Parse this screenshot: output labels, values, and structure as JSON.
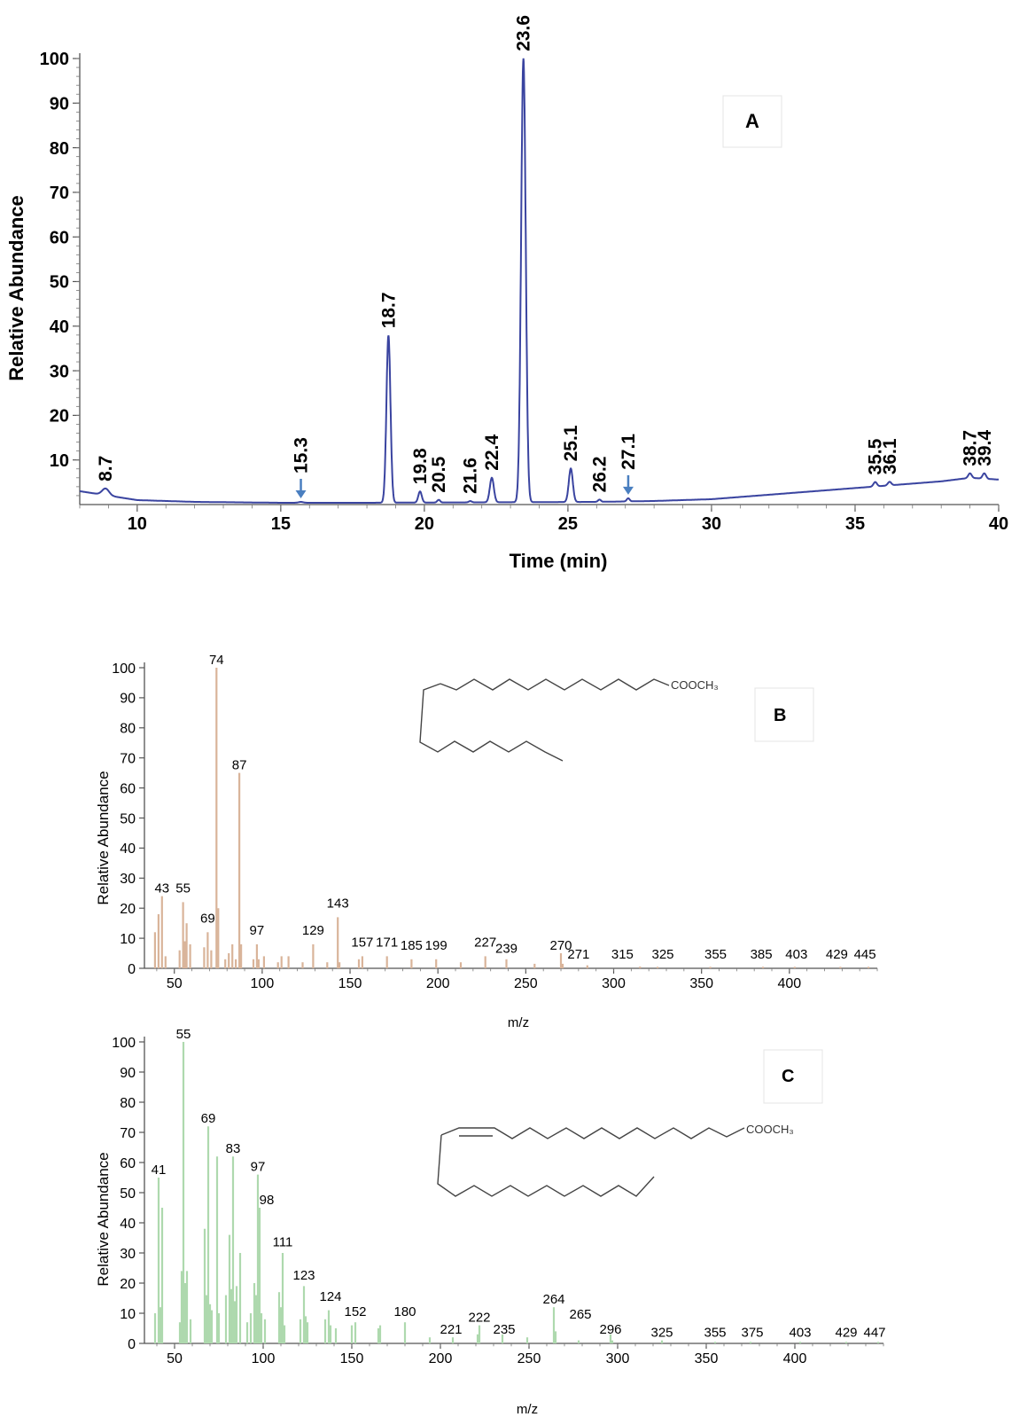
{
  "chart_data": [
    {
      "id": "A",
      "type": "line",
      "panel_label": "A",
      "xlabel": "Time (min)",
      "ylabel": "Relative Abundance",
      "xlim": [
        8,
        40
      ],
      "ylim": [
        0,
        100
      ],
      "xticks": [
        10,
        15,
        20,
        25,
        30,
        35,
        40
      ],
      "yticks": [
        10,
        20,
        30,
        40,
        50,
        60,
        70,
        80,
        90,
        100
      ],
      "color": "#3a44a0",
      "arrow_color": "#4a7fc0",
      "baseline": [
        [
          8,
          3
        ],
        [
          9,
          2
        ],
        [
          10,
          1
        ],
        [
          12,
          0.6
        ],
        [
          15,
          0.4
        ],
        [
          18,
          0.4
        ],
        [
          22,
          0.5
        ],
        [
          26,
          0.6
        ],
        [
          28,
          0.8
        ],
        [
          30,
          1.2
        ],
        [
          32,
          2.2
        ],
        [
          34,
          3.2
        ],
        [
          36,
          4.2
        ],
        [
          38,
          5.2
        ],
        [
          39,
          6
        ],
        [
          40,
          5.6
        ]
      ],
      "peaks": [
        {
          "label": "8.7",
          "t": 8.9,
          "h": 1.5,
          "w": 0.12,
          "arrow": false
        },
        {
          "label": "15.3",
          "t": 15.7,
          "h": 0.2,
          "w": 0.08,
          "arrow": true
        },
        {
          "label": "18.7",
          "t": 18.75,
          "h": 37.5,
          "w": 0.07,
          "arrow": false
        },
        {
          "label": "19.8",
          "t": 19.85,
          "h": 2.5,
          "w": 0.06,
          "arrow": false
        },
        {
          "label": "20.5",
          "t": 20.5,
          "h": 0.6,
          "w": 0.05,
          "arrow": false
        },
        {
          "label": "21.6",
          "t": 21.6,
          "h": 0.3,
          "w": 0.05,
          "arrow": false
        },
        {
          "label": "22.4",
          "t": 22.35,
          "h": 5.5,
          "w": 0.07,
          "arrow": false
        },
        {
          "label": "23.6",
          "t": 23.45,
          "h": 99.5,
          "w": 0.08,
          "arrow": false
        },
        {
          "label": "25.1",
          "t": 25.1,
          "h": 7.5,
          "w": 0.07,
          "arrow": false
        },
        {
          "label": "26.2",
          "t": 26.1,
          "h": 0.5,
          "w": 0.05,
          "arrow": false
        },
        {
          "label": "27.1",
          "t": 27.1,
          "h": 0.7,
          "w": 0.05,
          "arrow": true
        },
        {
          "label": "35.5",
          "t": 35.7,
          "h": 1.0,
          "w": 0.06,
          "arrow": false
        },
        {
          "label": "36.1",
          "t": 36.2,
          "h": 0.8,
          "w": 0.06,
          "arrow": false
        },
        {
          "label": "38.7",
          "t": 39.0,
          "h": 1.0,
          "w": 0.06,
          "arrow": false
        },
        {
          "label": "39.4",
          "t": 39.5,
          "h": 1.2,
          "w": 0.06,
          "arrow": false
        }
      ]
    },
    {
      "id": "B",
      "type": "bar",
      "panel_label": "B",
      "xlabel": "m/z",
      "ylabel": "Relative Abundance",
      "xlim": [
        33,
        450
      ],
      "ylim": [
        0,
        100
      ],
      "xticks": [
        50,
        100,
        150,
        200,
        250,
        300,
        350,
        400
      ],
      "yticks": [
        0,
        10,
        20,
        30,
        40,
        50,
        60,
        70,
        80,
        90,
        100
      ],
      "color": "#d9b49a",
      "formula": "COOCH₃",
      "bars": [
        [
          39,
          12
        ],
        [
          41,
          18
        ],
        [
          43,
          24
        ],
        [
          45,
          4
        ],
        [
          53,
          6
        ],
        [
          55,
          22
        ],
        [
          56,
          9
        ],
        [
          57,
          15
        ],
        [
          59,
          8
        ],
        [
          67,
          7
        ],
        [
          69,
          12
        ],
        [
          71,
          6
        ],
        [
          74,
          100
        ],
        [
          75,
          20
        ],
        [
          79,
          3
        ],
        [
          81,
          5
        ],
        [
          83,
          8
        ],
        [
          85,
          3
        ],
        [
          87,
          65
        ],
        [
          88,
          8
        ],
        [
          95,
          3
        ],
        [
          97,
          8
        ],
        [
          98,
          3
        ],
        [
          101,
          4
        ],
        [
          109,
          2
        ],
        [
          111,
          4
        ],
        [
          115,
          4
        ],
        [
          123,
          2
        ],
        [
          129,
          8
        ],
        [
          137,
          2
        ],
        [
          143,
          17
        ],
        [
          144,
          2
        ],
        [
          155,
          3
        ],
        [
          157,
          4
        ],
        [
          171,
          4
        ],
        [
          185,
          3
        ],
        [
          199,
          3
        ],
        [
          213,
          2
        ],
        [
          227,
          4
        ],
        [
          239,
          3
        ],
        [
          255,
          1.5
        ],
        [
          270,
          5
        ],
        [
          271,
          1.5
        ],
        [
          285,
          1
        ],
        [
          315,
          0.6
        ],
        [
          325,
          0.5
        ],
        [
          355,
          0.5
        ],
        [
          385,
          0.5
        ],
        [
          403,
          0.5
        ],
        [
          429,
          0.5
        ],
        [
          445,
          0.5
        ]
      ],
      "labels": [
        {
          "text": "74",
          "x": 74,
          "y": 100
        },
        {
          "text": "87",
          "x": 87,
          "y": 65
        },
        {
          "text": "43",
          "x": 43,
          "y": 24
        },
        {
          "text": "55",
          "x": 55,
          "y": 24
        },
        {
          "text": "69",
          "x": 69,
          "y": 14
        },
        {
          "text": "97",
          "x": 97,
          "y": 10
        },
        {
          "text": "143",
          "x": 143,
          "y": 19
        },
        {
          "text": "129",
          "x": 129,
          "y": 10
        },
        {
          "text": "157",
          "x": 157,
          "y": 6
        },
        {
          "text": "171",
          "x": 171,
          "y": 6
        },
        {
          "text": "185",
          "x": 185,
          "y": 5
        },
        {
          "text": "199",
          "x": 199,
          "y": 5
        },
        {
          "text": "227",
          "x": 227,
          "y": 6
        },
        {
          "text": "239",
          "x": 239,
          "y": 4
        },
        {
          "text": "270",
          "x": 270,
          "y": 5
        },
        {
          "text": "271",
          "x": 280,
          "y": 2
        },
        {
          "text": "315",
          "x": 305,
          "y": 2
        },
        {
          "text": "325",
          "x": 328,
          "y": 2
        },
        {
          "text": "355",
          "x": 358,
          "y": 2
        },
        {
          "text": "385",
          "x": 384,
          "y": 2
        },
        {
          "text": "403",
          "x": 404,
          "y": 2
        },
        {
          "text": "429",
          "x": 427,
          "y": 2
        },
        {
          "text": "445",
          "x": 443,
          "y": 2
        }
      ]
    },
    {
      "id": "C",
      "type": "bar",
      "panel_label": "C",
      "xlabel": "m/z",
      "ylabel": "Relative Abundance",
      "xlim": [
        33,
        450
      ],
      "ylim": [
        0,
        100
      ],
      "xticks": [
        50,
        100,
        150,
        200,
        250,
        300,
        350,
        400
      ],
      "yticks": [
        0,
        10,
        20,
        30,
        40,
        50,
        60,
        70,
        80,
        90,
        100
      ],
      "color": "#aed9ae",
      "formula": "COOCH₃",
      "bars": [
        [
          39,
          10
        ],
        [
          41,
          55
        ],
        [
          42,
          12
        ],
        [
          43,
          45
        ],
        [
          53,
          7
        ],
        [
          54,
          24
        ],
        [
          55,
          100
        ],
        [
          56,
          20
        ],
        [
          57,
          24
        ],
        [
          59,
          8
        ],
        [
          67,
          38
        ],
        [
          68,
          16
        ],
        [
          69,
          72
        ],
        [
          70,
          13
        ],
        [
          71,
          11
        ],
        [
          74,
          62
        ],
        [
          75,
          10
        ],
        [
          79,
          16
        ],
        [
          81,
          36
        ],
        [
          82,
          18
        ],
        [
          83,
          62
        ],
        [
          84,
          14
        ],
        [
          85,
          19
        ],
        [
          87,
          30
        ],
        [
          91,
          7
        ],
        [
          93,
          10
        ],
        [
          95,
          20
        ],
        [
          96,
          16
        ],
        [
          97,
          56
        ],
        [
          98,
          45
        ],
        [
          99,
          10
        ],
        [
          101,
          8
        ],
        [
          109,
          17
        ],
        [
          110,
          12
        ],
        [
          111,
          30
        ],
        [
          112,
          6
        ],
        [
          121,
          8
        ],
        [
          123,
          19
        ],
        [
          124,
          9
        ],
        [
          125,
          7
        ],
        [
          135,
          8
        ],
        [
          137,
          11
        ],
        [
          138,
          6
        ],
        [
          141,
          5
        ],
        [
          150,
          6
        ],
        [
          152,
          7
        ],
        [
          165,
          5
        ],
        [
          166,
          6
        ],
        [
          180,
          7
        ],
        [
          194,
          2
        ],
        [
          207,
          2
        ],
        [
          221,
          3
        ],
        [
          222,
          6
        ],
        [
          235,
          3
        ],
        [
          249,
          2
        ],
        [
          264,
          12
        ],
        [
          265,
          4
        ],
        [
          278,
          1
        ],
        [
          296,
          3
        ],
        [
          297,
          1
        ],
        [
          325,
          1
        ],
        [
          355,
          0.5
        ],
        [
          375,
          0.5
        ],
        [
          403,
          0.5
        ],
        [
          429,
          0.5
        ],
        [
          447,
          0.5
        ]
      ],
      "labels": [
        {
          "text": "55",
          "x": 55,
          "y": 100
        },
        {
          "text": "69",
          "x": 69,
          "y": 72
        },
        {
          "text": "83",
          "x": 83,
          "y": 62
        },
        {
          "text": "41",
          "x": 41,
          "y": 55
        },
        {
          "text": "97",
          "x": 97,
          "y": 56
        },
        {
          "text": "98",
          "x": 102,
          "y": 45
        },
        {
          "text": "111",
          "x": 111,
          "y": 31
        },
        {
          "text": "123",
          "x": 123,
          "y": 20
        },
        {
          "text": "124",
          "x": 138,
          "y": 13
        },
        {
          "text": "152",
          "x": 152,
          "y": 8
        },
        {
          "text": "180",
          "x": 180,
          "y": 8
        },
        {
          "text": "221",
          "x": 206,
          "y": 2
        },
        {
          "text": "222",
          "x": 222,
          "y": 6
        },
        {
          "text": "235",
          "x": 236,
          "y": 2
        },
        {
          "text": "264",
          "x": 264,
          "y": 12
        },
        {
          "text": "265",
          "x": 279,
          "y": 7
        },
        {
          "text": "296",
          "x": 296,
          "y": 2
        },
        {
          "text": "325",
          "x": 325,
          "y": 1
        },
        {
          "text": "355",
          "x": 355,
          "y": 1
        },
        {
          "text": "375",
          "x": 376,
          "y": 1
        },
        {
          "text": "403",
          "x": 403,
          "y": 1
        },
        {
          "text": "429",
          "x": 429,
          "y": 1
        },
        {
          "text": "447",
          "x": 445,
          "y": 1
        }
      ]
    }
  ]
}
